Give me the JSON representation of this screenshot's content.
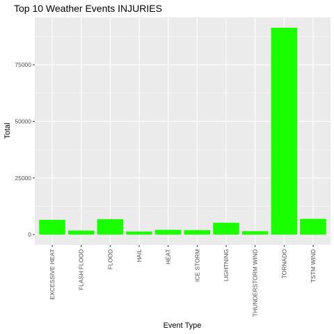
{
  "chart_data": {
    "type": "bar",
    "title": "Top 10 Weather Events INJURIES",
    "xlabel": "Event Type",
    "ylabel": "Total",
    "categories": [
      "EXCESSIVE HEAT",
      "FLASH FLOOD",
      "FLOOD",
      "HAIL",
      "HEAT",
      "ICE STORM",
      "LIGHTNING",
      "THUNDERSTORM WIND",
      "TORNADO",
      "TSTM WIND"
    ],
    "values": [
      6525,
      1777,
      6789,
      1361,
      2100,
      1975,
      5230,
      1488,
      91346,
      6957
    ],
    "y_ticks": [
      0,
      25000,
      50000,
      75000
    ],
    "y_tick_labels": [
      "0",
      "25000",
      "50000",
      "75000"
    ],
    "ylim": [
      -4567,
      95913
    ],
    "bar_color": "#1aff00",
    "panel_color": "#ebebeb",
    "grid": true,
    "legend": "none"
  }
}
